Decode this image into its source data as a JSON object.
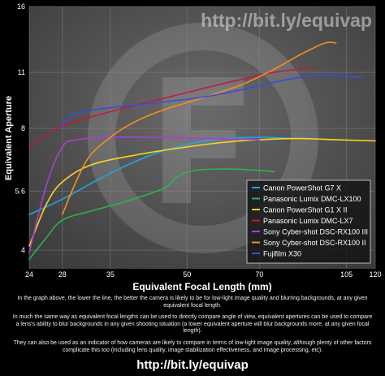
{
  "chart_data": {
    "type": "line",
    "watermark": "http://bit.ly/equivap",
    "xlabel": "Equivalent Focal Length (mm)",
    "ylabel": "Equivalent Aperture",
    "x_scale": "log",
    "y_scale": "log",
    "xlim": [
      24,
      120
    ],
    "ylim": [
      3.6,
      16
    ],
    "x_ticks": [
      24,
      28,
      35,
      50,
      70,
      105,
      120
    ],
    "y_ticks": [
      4,
      5.6,
      8,
      11,
      16
    ],
    "grid": true,
    "legend": "lower-right",
    "series": [
      {
        "name": "Canon PowerShot G7 X",
        "color": "#1ba9e1",
        "x": [
          24,
          28,
          35,
          42,
          50,
          60,
          70,
          85,
          100
        ],
        "y": [
          4.9,
          5.35,
          6.2,
          6.85,
          7.3,
          7.55,
          7.6,
          7.55,
          7.5
        ]
      },
      {
        "name": "Panasonic Lumix DMC-LX100",
        "color": "#2db34a",
        "x": [
          24,
          26,
          28,
          32,
          38,
          45,
          48,
          52,
          60,
          70,
          75
        ],
        "y": [
          3.8,
          4.3,
          4.75,
          5.0,
          5.3,
          5.7,
          6.1,
          6.3,
          6.35,
          6.3,
          6.25
        ]
      },
      {
        "name": "Canon PowerShot G1 X II",
        "color": "#ffd21f",
        "x": [
          24,
          26,
          28,
          32,
          40,
          50,
          60,
          70,
          85,
          100,
          120
        ],
        "y": [
          4.1,
          5.2,
          5.9,
          6.5,
          6.9,
          7.2,
          7.4,
          7.5,
          7.55,
          7.5,
          7.45
        ]
      },
      {
        "name": "Panasonic Lumix DMC-LX7",
        "color": "#c21a3e",
        "x": [
          24,
          28,
          35,
          45,
          55,
          65,
          75,
          90
        ],
        "y": [
          7.2,
          8.1,
          8.8,
          9.5,
          10.1,
          10.6,
          11.0,
          11.3
        ]
      },
      {
        "name": "Sony Cyber-shot DSC-RX100 III",
        "color": "#a83fd1",
        "x": [
          24,
          26,
          28,
          30,
          35,
          45,
          55,
          70
        ],
        "y": [
          3.95,
          5.8,
          7.2,
          7.5,
          7.6,
          7.6,
          7.55,
          7.5
        ]
      },
      {
        "name": "Sony Cyber-shot DSC-RX100 II",
        "color": "#f48e22",
        "x": [
          28,
          30,
          32,
          36,
          40,
          45,
          55,
          65,
          75,
          85,
          95,
          100
        ],
        "y": [
          4.9,
          6.0,
          6.9,
          7.8,
          8.4,
          8.9,
          9.6,
          10.3,
          11.2,
          12.2,
          13.0,
          13.0
        ]
      },
      {
        "name": "Fujifilm X30",
        "color": "#3a4ed6",
        "x": [
          28,
          29,
          31,
          35,
          45,
          55,
          65,
          75,
          85,
          95,
          105,
          112
        ],
        "y": [
          8.1,
          8.6,
          8.8,
          9.0,
          9.3,
          9.6,
          10.0,
          10.4,
          10.7,
          10.8,
          10.75,
          10.7
        ]
      }
    ]
  },
  "notes": [
    "In the graph above, the lower the line, the better the camera is likely to be for low-light image quality and blurring backgrounds, at any given equivalent focal length.",
    "In much the same way as equivalent focal lengths can be used to directly compare angle of view, equivalent apertures can be used to compare a lens's ability to blur backgrounds in any given shooting situation (a lower equivalent aperture will blur backgrounds more, at any given focal length).",
    "They can also be used as an indicator of how cameras are likely to compare in terms of low-light image quality, although plenty of other factors complicate this too (including lens quality, image stabilization effectiveness, and image processing, etc)."
  ],
  "footer_url": "http://bit.ly/equivap"
}
